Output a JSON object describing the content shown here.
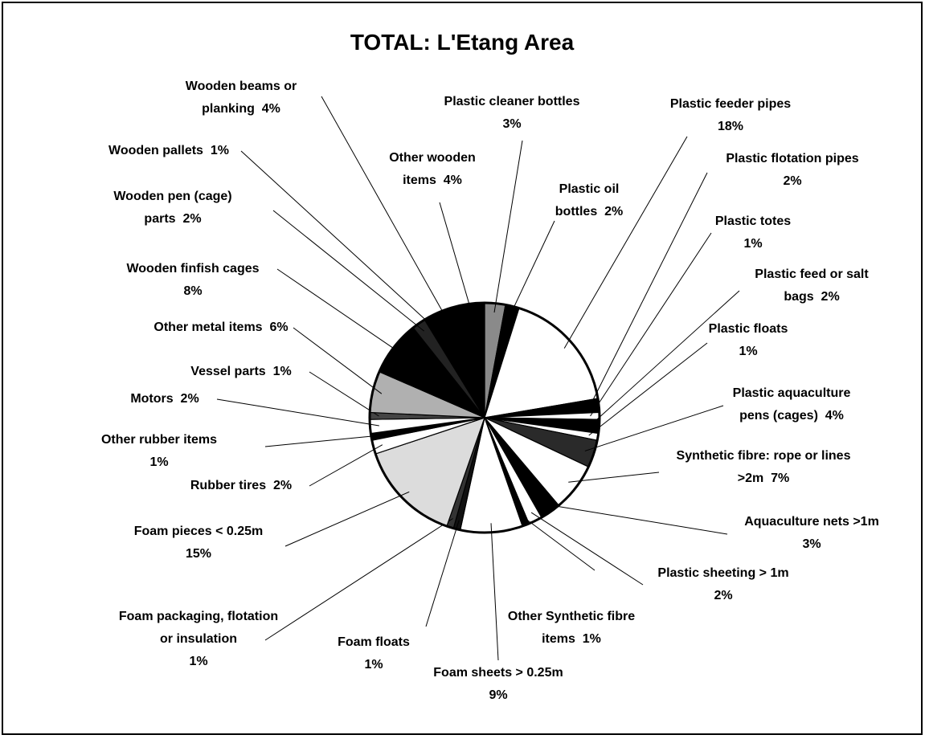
{
  "chart_data": {
    "type": "pie",
    "title": "TOTAL: L'Etang Area",
    "categories": [
      "Plastic cleaner bottles",
      "Plastic oil bottles",
      "Plastic feeder pipes",
      "Plastic flotation pipes",
      "Plastic totes",
      "Plastic feed or salt bags",
      "Plastic floats",
      "Plastic aquaculture pens (cages)",
      "Synthetic fibre: rope or lines >2m",
      "Aquaculture nets >1m",
      "Plastic sheeting > 1m",
      "Other Synthetic fibre items",
      "Foam sheets > 0.25m",
      "Foam floats",
      "Foam packaging, flotation or insulation",
      "Foam pieces < 0.25m",
      "Rubber tires",
      "Other rubber items",
      "Motors",
      "Vessel parts",
      "Other metal items",
      "Wooden finfish cages",
      "Wooden pen (cage) parts",
      "Wooden pallets",
      "Wooden beams or planking",
      "Other wooden items"
    ],
    "values": [
      3,
      2,
      18,
      2,
      1,
      2,
      1,
      4,
      7,
      3,
      2,
      1,
      9,
      1,
      1,
      15,
      2,
      1,
      2,
      1,
      6,
      8,
      2,
      1,
      4,
      4
    ],
    "value_labels": [
      "3%",
      "2%",
      "18%",
      "2%",
      "1%",
      "2%",
      "1%",
      "4%",
      "7%",
      "3%",
      "2%",
      "1%",
      "9%",
      "1%",
      "1%",
      "15%",
      "2%",
      "1%",
      "2%",
      "1%",
      "6%",
      "8%",
      "2%",
      "1%",
      "4%",
      "4%"
    ],
    "colors": [
      "#8a8a8a",
      "#000000",
      "#ffffff",
      "#000000",
      "#ffffff",
      "#000000",
      "#ffffff",
      "#2a2a2a",
      "#ffffff",
      "#000000",
      "#ffffff",
      "#000000",
      "#ffffff",
      "#111111",
      "#333333",
      "#dcdcdc",
      "#ffffff",
      "#000000",
      "#ffffff",
      "#444444",
      "#b0b0b0",
      "#000000",
      "#222222",
      "#000000",
      "#000000",
      "#000000"
    ]
  }
}
